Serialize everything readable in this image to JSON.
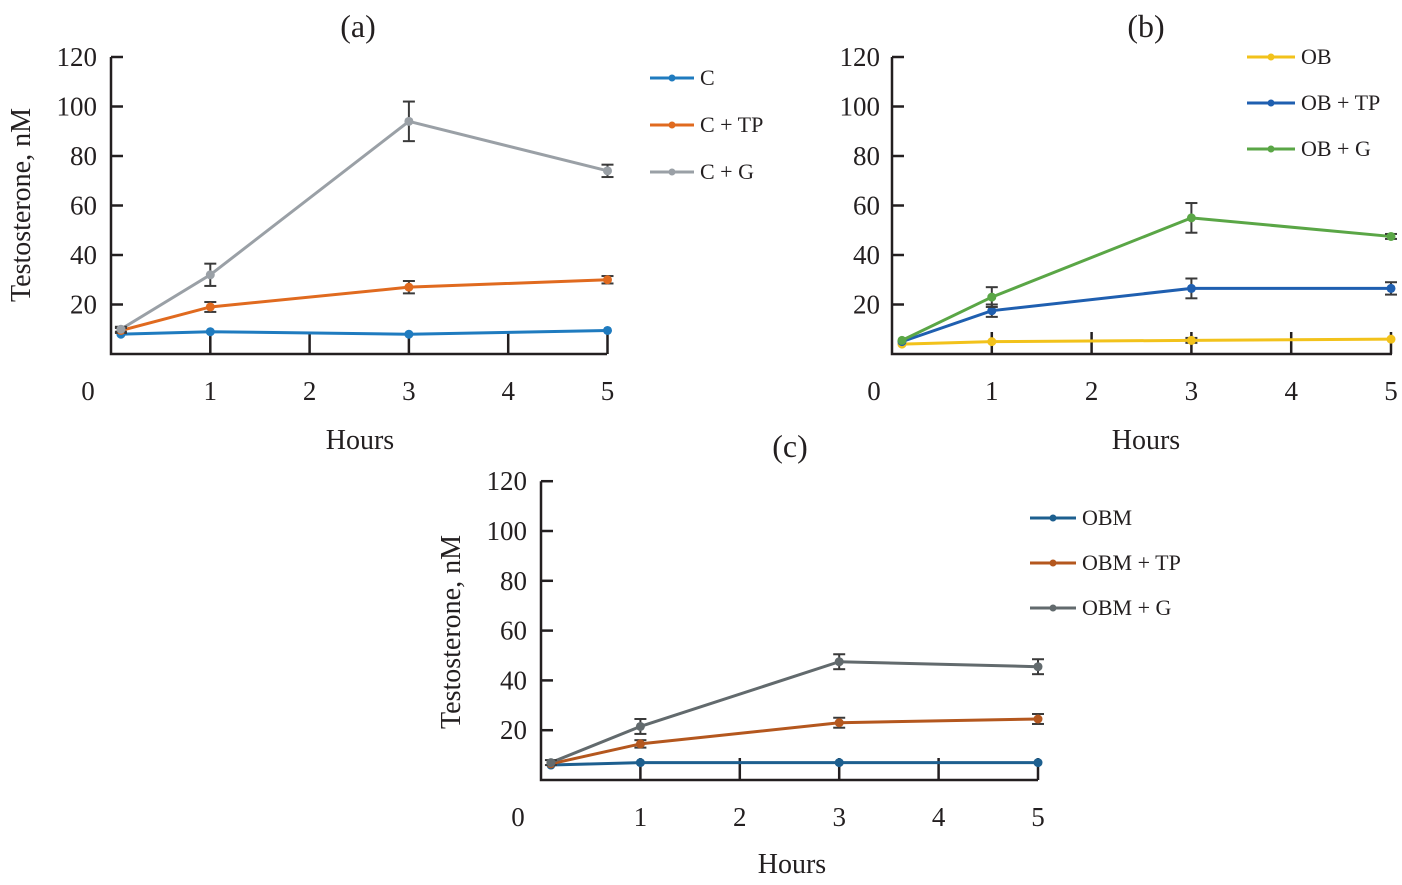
{
  "chart_data": [
    {
      "type": "line",
      "panel": "(a)",
      "xlabel": "Hours",
      "ylabel": "Testosterone, nM",
      "x_ticks": [
        "0",
        "1",
        "2",
        "3",
        "4",
        "5"
      ],
      "y_ticks": [
        "20",
        "40",
        "60",
        "80",
        "100",
        "120"
      ],
      "xlim": [
        0,
        5
      ],
      "ylim": [
        0,
        120
      ],
      "grid": false,
      "legend_position": "right",
      "x": [
        0.1,
        1,
        3,
        5
      ],
      "series": [
        {
          "name": "C",
          "color": "#1f7bbf",
          "values": [
            8,
            9,
            8,
            9.5
          ],
          "errors": [
            0,
            0,
            0,
            0
          ]
        },
        {
          "name": "C + TP",
          "color": "#e06a1f",
          "values": [
            9.5,
            19,
            27,
            30
          ],
          "errors": [
            1,
            2,
            2.5,
            1.5
          ]
        },
        {
          "name": "C + G",
          "color": "#9aa0a6",
          "values": [
            10,
            32,
            94,
            74
          ],
          "errors": [
            1,
            4.5,
            8,
            2.5
          ]
        }
      ]
    },
    {
      "type": "line",
      "panel": "(b)",
      "xlabel": "Hours",
      "ylabel": "",
      "x_ticks": [
        "0",
        "1",
        "2",
        "3",
        "4",
        "5"
      ],
      "y_ticks": [
        "20",
        "40",
        "60",
        "80",
        "100",
        "120"
      ],
      "xlim": [
        0,
        5
      ],
      "ylim": [
        0,
        120
      ],
      "grid": false,
      "legend_position": "top-right",
      "x": [
        0.1,
        1,
        3,
        5
      ],
      "series": [
        {
          "name": "OB",
          "color": "#f2c21b",
          "values": [
            4,
            5,
            5.5,
            6
          ],
          "errors": [
            0,
            0,
            1,
            0
          ]
        },
        {
          "name": "OB + TP",
          "color": "#1f5fb0",
          "values": [
            5,
            17.5,
            26.5,
            26.5
          ],
          "errors": [
            0,
            2.5,
            4,
            2.5
          ]
        },
        {
          "name": "OB + G",
          "color": "#5aa646",
          "values": [
            5.5,
            23,
            55,
            47.5
          ],
          "errors": [
            0,
            4,
            6,
            1
          ]
        }
      ]
    },
    {
      "type": "line",
      "panel": "(c)",
      "xlabel": "Hours",
      "ylabel": "Testosterone, nM",
      "x_ticks": [
        "0",
        "1",
        "2",
        "3",
        "4",
        "5"
      ],
      "y_ticks": [
        "20",
        "40",
        "60",
        "80",
        "100",
        "120"
      ],
      "xlim": [
        0,
        5
      ],
      "ylim": [
        0,
        120
      ],
      "grid": false,
      "legend_position": "right",
      "x": [
        0.1,
        1,
        3,
        5
      ],
      "series": [
        {
          "name": "OBM",
          "color": "#1d5f8f",
          "values": [
            6,
            7,
            7,
            7
          ],
          "errors": [
            0,
            0,
            0,
            0
          ]
        },
        {
          "name": "OBM + TP",
          "color": "#b4571e",
          "values": [
            6.5,
            14.5,
            23,
            24.5
          ],
          "errors": [
            0,
            1.5,
            2,
            2
          ]
        },
        {
          "name": "OBM + G",
          "color": "#626a6d",
          "values": [
            7,
            21.5,
            47.5,
            45.5
          ],
          "errors": [
            1,
            3,
            3,
            3
          ]
        }
      ]
    }
  ]
}
